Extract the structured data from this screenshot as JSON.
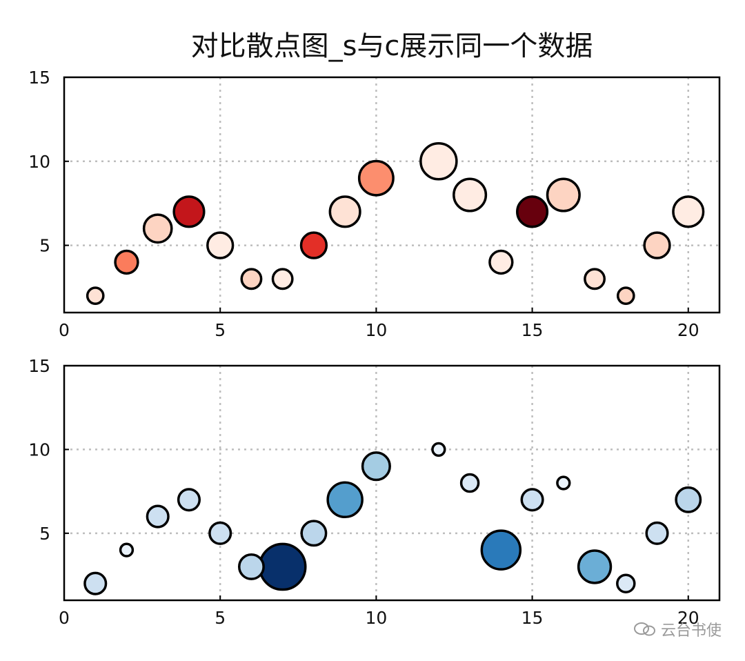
{
  "title": "对比散点图_s与c展示同一个数据",
  "watermark": "云台书使",
  "chart_data": [
    {
      "type": "scatter",
      "colormap": "Reds",
      "xlim": [
        0,
        21
      ],
      "ylim": [
        1,
        15
      ],
      "xticks": [
        0,
        5,
        10,
        15,
        20
      ],
      "yticks": [
        5,
        10,
        15
      ],
      "grid": true,
      "x": [
        1,
        2,
        3,
        4,
        5,
        6,
        7,
        8,
        9,
        10,
        12,
        13,
        14,
        15,
        16,
        17,
        18,
        19,
        20
      ],
      "y": [
        2,
        4,
        6,
        7,
        5,
        3,
        3,
        5,
        7,
        9,
        10,
        8,
        4,
        7,
        8,
        3,
        2,
        5,
        7
      ],
      "size_value": [
        2,
        4,
        6,
        7,
        5,
        3,
        3,
        5,
        7,
        9,
        10,
        8,
        4,
        7,
        8,
        3,
        2,
        5,
        7
      ],
      "color_value": [
        2,
        8,
        3,
        14,
        1,
        3,
        1,
        12,
        2,
        7,
        1,
        1,
        1,
        18,
        3,
        2,
        3,
        3,
        1
      ],
      "color_range": [
        0,
        18
      ]
    },
    {
      "type": "scatter",
      "colormap": "Blues",
      "xlim": [
        0,
        21
      ],
      "ylim": [
        1,
        15
      ],
      "xticks": [
        0,
        5,
        10,
        15,
        20
      ],
      "yticks": [
        5,
        10,
        15
      ],
      "grid": true,
      "x": [
        1,
        2,
        3,
        4,
        5,
        6,
        7,
        8,
        9,
        10,
        12,
        13,
        14,
        15,
        16,
        17,
        18,
        19,
        20
      ],
      "y": [
        2,
        4,
        6,
        7,
        5,
        3,
        3,
        5,
        7,
        9,
        10,
        8,
        4,
        7,
        8,
        3,
        2,
        5,
        7
      ],
      "size_value": [
        3,
        1,
        3,
        3,
        3,
        4,
        14,
        4,
        8,
        5,
        1,
        2,
        10,
        3,
        1,
        7,
        2,
        3,
        4
      ],
      "color_value": [
        3,
        1,
        3,
        3,
        3,
        4,
        14,
        4,
        8,
        5,
        1,
        2,
        10,
        3,
        1,
        7,
        2,
        3,
        4
      ],
      "color_range": [
        0,
        14
      ]
    }
  ]
}
